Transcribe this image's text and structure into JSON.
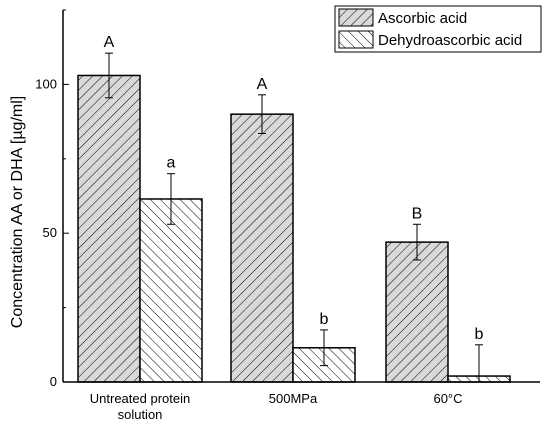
{
  "chart_data": {
    "type": "bar",
    "title": "",
    "xlabel": "",
    "ylabel": "Concentration AA or DHA [µg/ml]",
    "ylim": [
      0,
      125
    ],
    "yticks": [
      0,
      50,
      100
    ],
    "categories": [
      [
        "Untreated protein",
        "solution"
      ],
      [
        "500MPa"
      ],
      [
        "60°C"
      ]
    ],
    "series": [
      {
        "name": "Ascorbic acid",
        "values": [
          103,
          90,
          47
        ],
        "errors": [
          7.5,
          6.5,
          6
        ],
        "letters": [
          "A",
          "A",
          "B"
        ],
        "hatch": "forward"
      },
      {
        "name": "Dehydroascorbic acid",
        "values": [
          61.5,
          11.5,
          2
        ],
        "errors": [
          8.5,
          6,
          10.5
        ],
        "letters": [
          "a",
          "b",
          "b"
        ],
        "hatch": "backward"
      }
    ],
    "legend_position": "top-right",
    "grid": false,
    "colors": {
      "bar_fill": "#d9d9d9",
      "hatch": "#000000",
      "axis": "#000000"
    }
  }
}
